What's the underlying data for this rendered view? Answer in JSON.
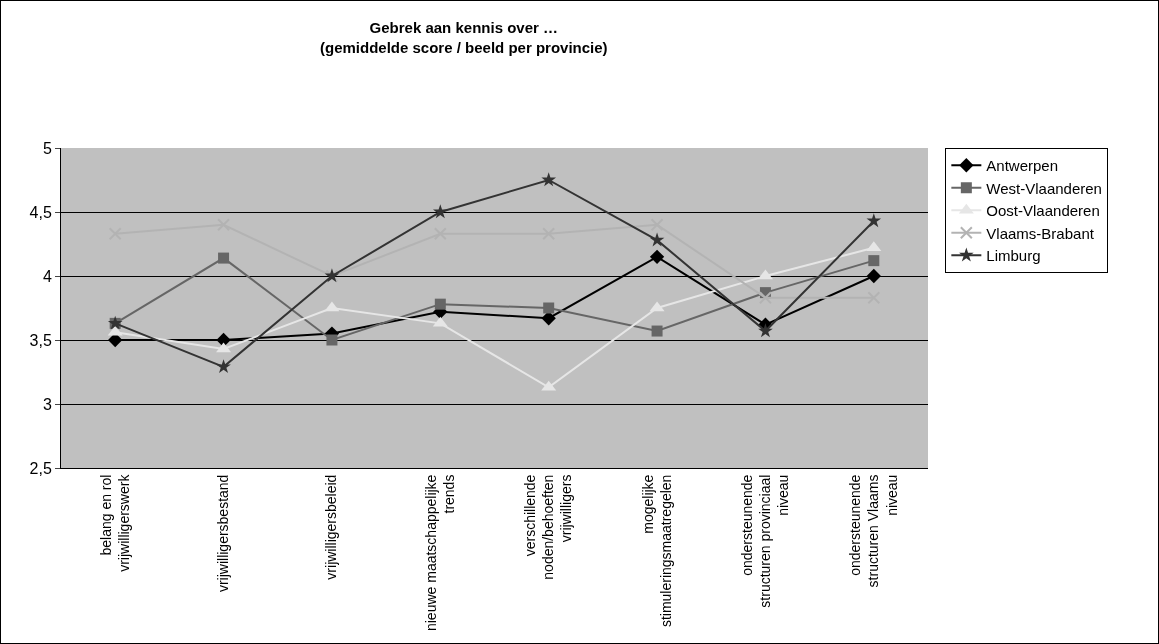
{
  "chart_data": {
    "type": "line",
    "title": "Gebrek aan kennis over …\n(gemiddelde score / beeld per provincie)",
    "categories": [
      "belang en rol vrijwilligerswerk",
      "vrijwilligersbestand",
      "vrijwilligersbeleid",
      "nieuwe maatschappelijke trends",
      "verschillende noden/behoeften vrijwilligers",
      "mogelijke stimuleringsmaatregelen",
      "ondersteunende structuren provinciaal niveau",
      "ondersteunende structuren Vlaams niveau"
    ],
    "series": [
      {
        "name": "Antwerpen",
        "color": "#000000",
        "marker": "diamond",
        "values": [
          3.5,
          3.5,
          3.55,
          3.72,
          3.67,
          4.15,
          3.62,
          4.0
        ]
      },
      {
        "name": "West-Vlaanderen",
        "color": "#666666",
        "marker": "square",
        "values": [
          3.63,
          4.14,
          3.5,
          3.78,
          3.75,
          3.57,
          3.87,
          4.12
        ]
      },
      {
        "name": "Oost-Vlaanderen",
        "color": "#e6e6e6",
        "marker": "triangle",
        "values": [
          3.56,
          3.43,
          3.75,
          3.63,
          3.13,
          3.75,
          4.0,
          4.22
        ]
      },
      {
        "name": "Vlaams-Brabant",
        "color": "#b3b3b3",
        "marker": "cross",
        "values": [
          4.33,
          4.4,
          4.0,
          4.33,
          4.33,
          4.4,
          3.83,
          3.83
        ]
      },
      {
        "name": "Limburg",
        "color": "#333333",
        "marker": "star",
        "values": [
          3.63,
          3.29,
          4.0,
          4.5,
          4.75,
          4.28,
          3.57,
          4.43
        ]
      }
    ],
    "ylim": [
      2.5,
      5
    ],
    "yticks": [
      {
        "value": 2.5,
        "label": "2,5"
      },
      3,
      {
        "value": 3.5,
        "label": "3,5"
      },
      4,
      {
        "value": 4.5,
        "label": "4,5"
      },
      5
    ],
    "grid": "y",
    "legend": "right",
    "line_style": "solid"
  }
}
